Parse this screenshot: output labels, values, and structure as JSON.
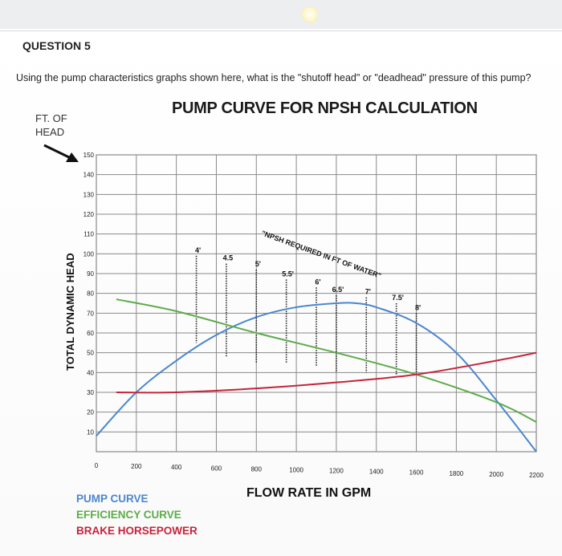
{
  "question": {
    "title": "QUESTION 5",
    "text": "Using the pump characteristics graphs shown here, what is the \"shutoff head\" or \"deadhead\" pressure of this pump?"
  },
  "header_label": "FT. OF\nHEAD",
  "colors": {
    "pump": "#4a86cf",
    "efficiency": "#5cab4a",
    "bhp": "#c5243b",
    "grid": "#8a8a8a",
    "arrow": "#111111"
  },
  "icons": {
    "arrow": "arrow-pointing-icon",
    "topbar_light": "sun-icon"
  },
  "chart_data": {
    "type": "line",
    "title": "PUMP CURVE FOR NPSH CALCULATION",
    "xlabel": "FLOW RATE IN GPM",
    "ylabel": "TOTAL DYNAMIC HEAD",
    "xlim": [
      0,
      2200
    ],
    "ylim": [
      0,
      150
    ],
    "x_ticks": [
      0,
      200,
      400,
      600,
      800,
      1000,
      1200,
      1400,
      1600,
      1800,
      2000,
      2200
    ],
    "y_ticks": [
      10,
      20,
      30,
      40,
      50,
      60,
      70,
      80,
      90,
      100,
      110,
      120,
      130,
      140,
      150
    ],
    "grid": true,
    "series": [
      {
        "name": "PUMP CURVE",
        "x": [
          0,
          200,
          400,
          600,
          800,
          1000,
          1200,
          1300,
          1400,
          1600,
          1800,
          2000,
          2200
        ],
        "y": [
          8,
          30,
          46,
          59,
          68,
          73,
          75,
          75,
          73,
          65,
          50,
          26,
          0
        ]
      },
      {
        "name": "EFFICIENCY CURVE",
        "x": [
          100,
          400,
          800,
          1200,
          1600,
          2000,
          2200
        ],
        "y": [
          77,
          71,
          60,
          50,
          39,
          25,
          15
        ]
      },
      {
        "name": "BRAKE HORSEPOWER",
        "x": [
          100,
          400,
          800,
          1200,
          1600,
          2000,
          2200
        ],
        "y": [
          30,
          30,
          32,
          35,
          39,
          46,
          50
        ]
      }
    ],
    "npsh_annotation": "\"NPSH REQUIRED IN FT OF WATER\"",
    "npsh": [
      {
        "label": "4'",
        "x": 500,
        "y_top": 99,
        "y_bottom": 55
      },
      {
        "label": "4.5",
        "x": 650,
        "y_top": 95,
        "y_bottom": 48
      },
      {
        "label": "5'",
        "x": 800,
        "y_top": 92,
        "y_bottom": 45
      },
      {
        "label": "5.5'",
        "x": 950,
        "y_top": 87,
        "y_bottom": 45
      },
      {
        "label": "6'",
        "x": 1100,
        "y_top": 83,
        "y_bottom": 43
      },
      {
        "label": "6.5'",
        "x": 1200,
        "y_top": 79,
        "y_bottom": 40
      },
      {
        "label": "7'",
        "x": 1350,
        "y_top": 78,
        "y_bottom": 40
      },
      {
        "label": "7.5'",
        "x": 1500,
        "y_top": 75,
        "y_bottom": 39
      },
      {
        "label": "8'",
        "x": 1600,
        "y_top": 70,
        "y_bottom": 39
      }
    ]
  },
  "legend": {
    "pump_label": "PUMP CURVE",
    "efficiency_label": "EFFICIENCY CURVE",
    "bhp_label": "BRAKE HORSEPOWER"
  }
}
